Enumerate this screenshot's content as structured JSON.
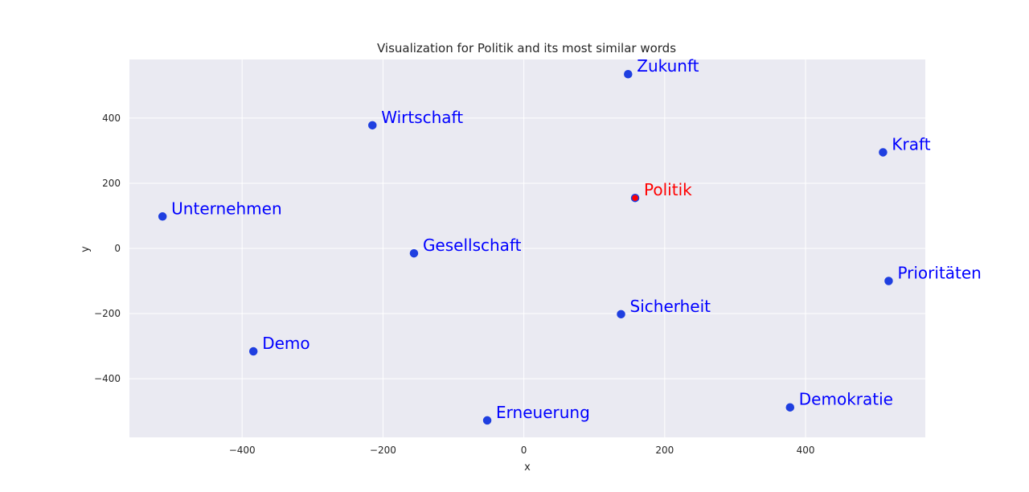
{
  "chart_data": {
    "type": "scatter",
    "title": "Visualization for Politik and its most similar words",
    "xlabel": "x",
    "ylabel": "y",
    "xlim": [
      -560,
      570
    ],
    "ylim": [
      -580,
      580
    ],
    "xticks": [
      -400,
      -200,
      0,
      200,
      400
    ],
    "yticks": [
      -400,
      -200,
      0,
      200,
      400
    ],
    "grid": true,
    "colors": {
      "background": "#eaeaf2",
      "grid": "#ffffff",
      "point": "#1f3fe0",
      "highlight": "#ff0000",
      "label": "#0000ff"
    },
    "points": [
      {
        "label": "Politik",
        "x": 158,
        "y": 155,
        "highlight": true
      },
      {
        "label": "Zukunft",
        "x": 148,
        "y": 535,
        "highlight": false
      },
      {
        "label": "Wirtschaft",
        "x": -215,
        "y": 378,
        "highlight": false
      },
      {
        "label": "Kraft",
        "x": 510,
        "y": 295,
        "highlight": false
      },
      {
        "label": "Unternehmen",
        "x": -513,
        "y": 98,
        "highlight": false
      },
      {
        "label": "Gesellschaft",
        "x": -156,
        "y": -15,
        "highlight": false
      },
      {
        "label": "Prioritäten",
        "x": 518,
        "y": -100,
        "highlight": false
      },
      {
        "label": "Sicherheit",
        "x": 138,
        "y": -202,
        "highlight": false
      },
      {
        "label": "Demo",
        "x": -384,
        "y": -316,
        "highlight": false
      },
      {
        "label": "Demokratie",
        "x": 378,
        "y": -488,
        "highlight": false
      },
      {
        "label": "Erneuerung",
        "x": -52,
        "y": -528,
        "highlight": false
      }
    ]
  }
}
